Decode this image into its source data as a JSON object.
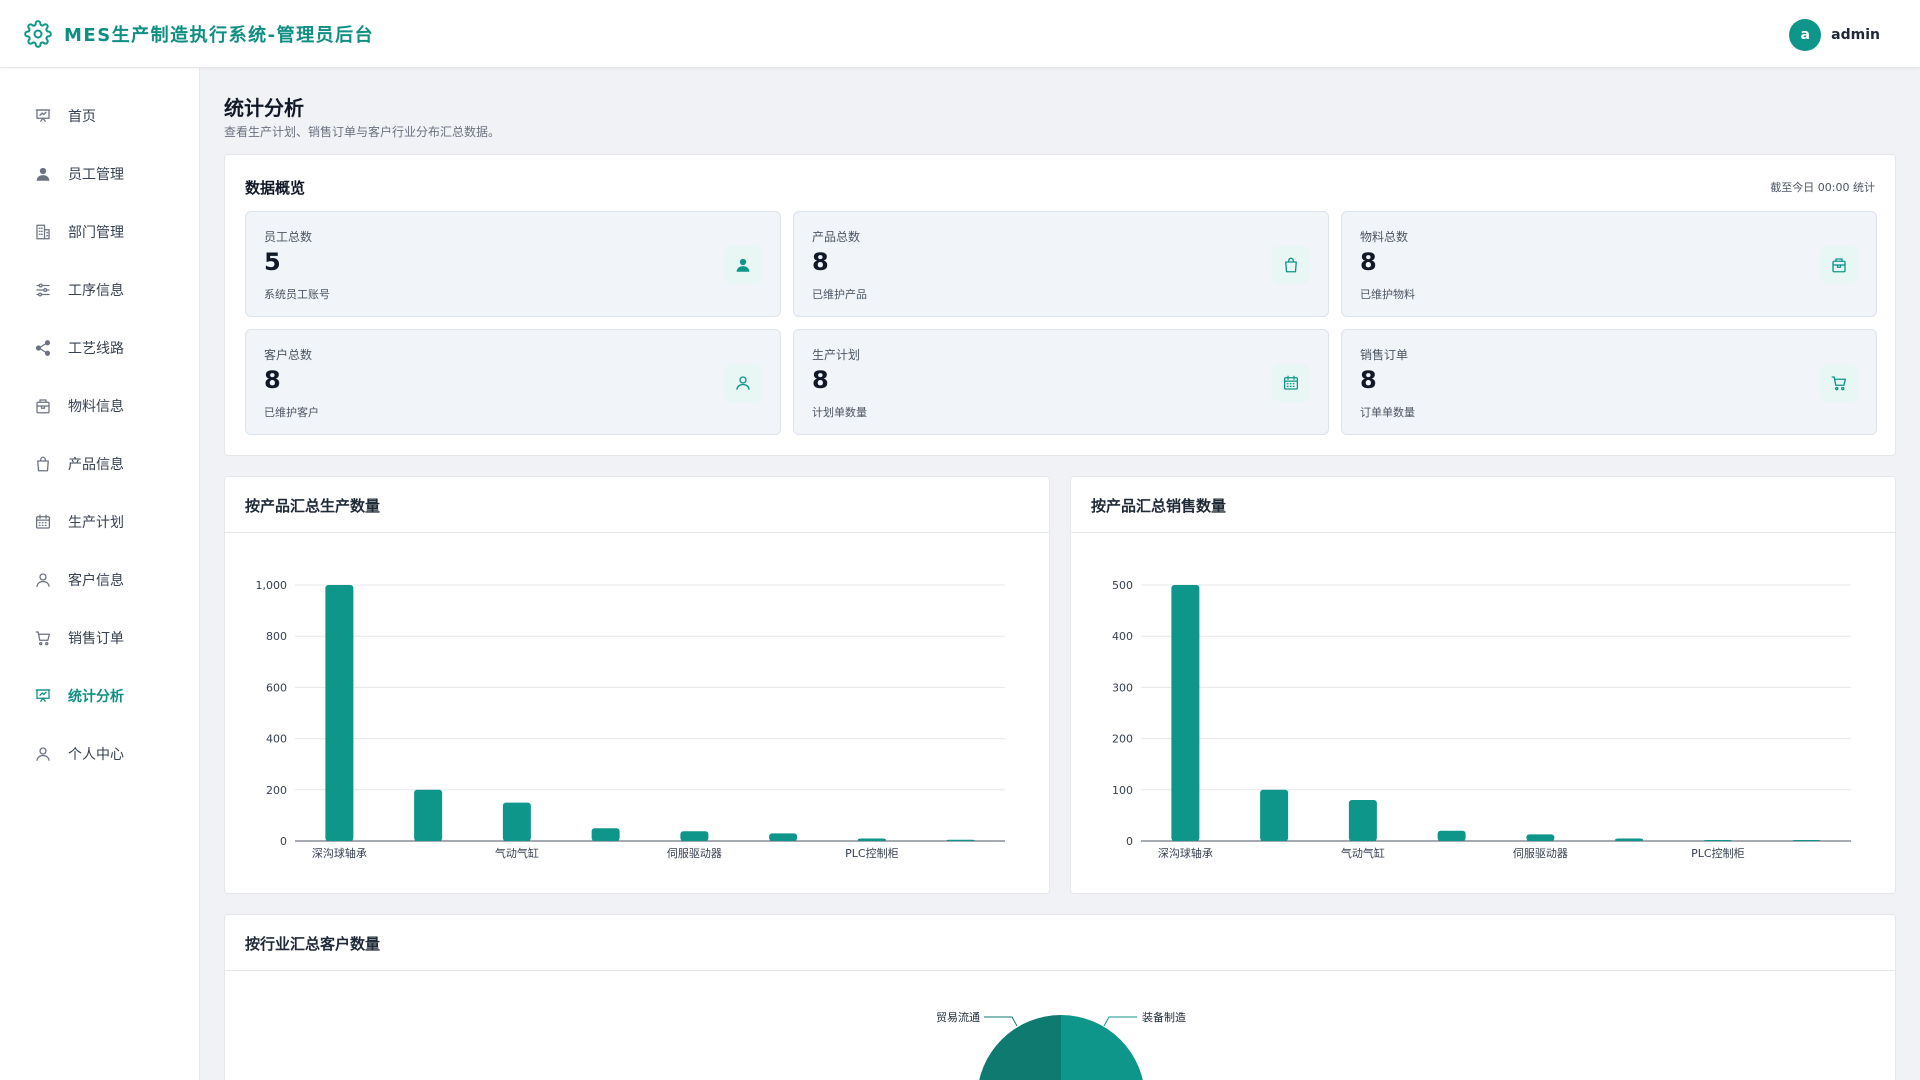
{
  "app": {
    "title": "MES生产制造执行系统-管理员后台",
    "brand_icon": "gear-icon",
    "accent": "#0f968a"
  },
  "user": {
    "avatar_letter": "a",
    "name": "admin"
  },
  "sidebar": {
    "active": "统计分析",
    "items": [
      {
        "label": "首页",
        "icon": "presentation-icon"
      },
      {
        "label": "员工管理",
        "icon": "user-solid-icon"
      },
      {
        "label": "部门管理",
        "icon": "building-icon"
      },
      {
        "label": "工序信息",
        "icon": "sliders-icon"
      },
      {
        "label": "工艺线路",
        "icon": "share-icon"
      },
      {
        "label": "物料信息",
        "icon": "box-icon"
      },
      {
        "label": "产品信息",
        "icon": "bag-icon"
      },
      {
        "label": "生产计划",
        "icon": "calendar-icon"
      },
      {
        "label": "客户信息",
        "icon": "user-outline-icon"
      },
      {
        "label": "销售订单",
        "icon": "cart-icon"
      },
      {
        "label": "统计分析",
        "icon": "presentation-icon"
      },
      {
        "label": "个人中心",
        "icon": "user-outline-icon"
      }
    ]
  },
  "page": {
    "title": "统计分析",
    "subtitle": "查看生产计划、销售订单与客户行业分布汇总数据。"
  },
  "overview": {
    "title": "数据概览",
    "note": "截至今日 00:00 统计",
    "cards": [
      {
        "label": "员工总数",
        "value": "5",
        "desc": "系统员工账号",
        "icon": "user-solid-icon"
      },
      {
        "label": "产品总数",
        "value": "8",
        "desc": "已维护产品",
        "icon": "bag-icon"
      },
      {
        "label": "物料总数",
        "value": "8",
        "desc": "已维护物料",
        "icon": "box-icon"
      },
      {
        "label": "客户总数",
        "value": "8",
        "desc": "已维护客户",
        "icon": "user-outline-icon"
      },
      {
        "label": "生产计划",
        "value": "8",
        "desc": "计划单数量",
        "icon": "calendar-icon"
      },
      {
        "label": "销售订单",
        "value": "8",
        "desc": "订单单数量",
        "icon": "cart-icon"
      }
    ]
  },
  "chart_data": [
    {
      "type": "bar",
      "title": "按产品汇总生产数量",
      "categories": [
        "深沟球轴承",
        "",
        "气动气缸",
        "",
        "伺服驱动器",
        "",
        "PLC控制柜",
        ""
      ],
      "values": [
        1000,
        200,
        150,
        50,
        38,
        30,
        10,
        5
      ],
      "yticks": [
        "0",
        "200",
        "400",
        "600",
        "800",
        "1,000"
      ],
      "ylim": [
        0,
        1000
      ],
      "grid": true,
      "color": "#0f968a"
    },
    {
      "type": "bar",
      "title": "按产品汇总销售数量",
      "categories": [
        "深沟球轴承",
        "",
        "气动气缸",
        "",
        "伺服驱动器",
        "",
        "PLC控制柜",
        ""
      ],
      "values": [
        500,
        100,
        80,
        20,
        13,
        5,
        2,
        1
      ],
      "yticks": [
        "0",
        "100",
        "200",
        "300",
        "400",
        "500"
      ],
      "ylim": [
        0,
        500
      ],
      "grid": true,
      "color": "#0f968a"
    },
    {
      "type": "pie",
      "title": "按行业汇总客户数量",
      "labels": [
        "装备制造",
        "贸易流通"
      ],
      "colors": [
        "#0f968a",
        "#0e7a70"
      ]
    }
  ]
}
